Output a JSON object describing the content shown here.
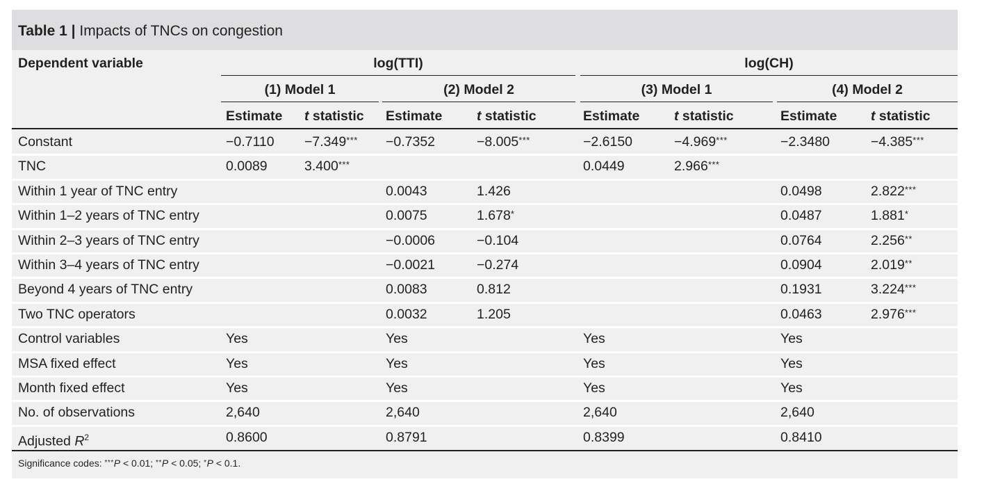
{
  "title": {
    "bold": "Table 1 |",
    "text": "Impacts of TNCs on congestion"
  },
  "header": {
    "dependent_variable": "Dependent variable",
    "groups": [
      "log(TTI)",
      "log(CH)"
    ],
    "models": [
      "(1) Model 1",
      "(2) Model 2",
      "(3) Model 1",
      "(4) Model 2"
    ],
    "subcolumns": [
      "Estimate",
      "t statistic",
      "Estimate",
      "t statistic",
      "Estimate",
      "t statistic",
      "Estimate",
      "t statistic"
    ]
  },
  "rows": [
    {
      "label": "Constant",
      "cells": [
        "−0.7110",
        "−7.349",
        "−0.7352",
        "−8.005",
        "−2.6150",
        "−4.969",
        "−2.3480",
        "−4.385"
      ],
      "stars": [
        "",
        "***",
        "",
        "***",
        "",
        "***",
        "",
        "***"
      ]
    },
    {
      "label": "TNC",
      "cells": [
        "0.0089",
        "3.400",
        "",
        "",
        "0.0449",
        "2.966",
        "",
        ""
      ],
      "stars": [
        "",
        "***",
        "",
        "",
        "",
        "***",
        "",
        ""
      ]
    },
    {
      "label": "Within 1 year of TNC entry",
      "cells": [
        "",
        "",
        "0.0043",
        "1.426",
        "",
        "",
        "0.0498",
        "2.822"
      ],
      "stars": [
        "",
        "",
        "",
        "",
        "",
        "",
        "",
        "***"
      ]
    },
    {
      "label": "Within 1–2 years of TNC entry",
      "cells": [
        "",
        "",
        "0.0075",
        "1.678",
        "",
        "",
        "0.0487",
        "1.881"
      ],
      "stars": [
        "",
        "",
        "",
        "*",
        "",
        "",
        "",
        "*"
      ]
    },
    {
      "label": "Within 2–3 years of TNC entry",
      "cells": [
        "",
        "",
        "−0.0006",
        "−0.104",
        "",
        "",
        "0.0764",
        "2.256"
      ],
      "stars": [
        "",
        "",
        "",
        "",
        "",
        "",
        "",
        "**"
      ]
    },
    {
      "label": "Within 3–4 years of TNC entry",
      "cells": [
        "",
        "",
        "−0.0021",
        "−0.274",
        "",
        "",
        "0.0904",
        "2.019"
      ],
      "stars": [
        "",
        "",
        "",
        "",
        "",
        "",
        "",
        "**"
      ]
    },
    {
      "label": "Beyond 4 years of TNC entry",
      "cells": [
        "",
        "",
        "0.0083",
        "0.812",
        "",
        "",
        "0.1931",
        "3.224"
      ],
      "stars": [
        "",
        "",
        "",
        "",
        "",
        "",
        "",
        "***"
      ]
    },
    {
      "label": "Two TNC operators",
      "cells": [
        "",
        "",
        "0.0032",
        "1.205",
        "",
        "",
        "0.0463",
        "2.976"
      ],
      "stars": [
        "",
        "",
        "",
        "",
        "",
        "",
        "",
        "***"
      ]
    },
    {
      "label": "Control variables",
      "cells": [
        "Yes",
        "",
        "Yes",
        "",
        "Yes",
        "",
        "Yes",
        ""
      ],
      "stars": [
        "",
        "",
        "",
        "",
        "",
        "",
        "",
        ""
      ]
    },
    {
      "label": "MSA fixed effect",
      "cells": [
        "Yes",
        "",
        "Yes",
        "",
        "Yes",
        "",
        "Yes",
        ""
      ],
      "stars": [
        "",
        "",
        "",
        "",
        "",
        "",
        "",
        ""
      ]
    },
    {
      "label": "Month fixed effect",
      "cells": [
        "Yes",
        "",
        "Yes",
        "",
        "Yes",
        "",
        "Yes",
        ""
      ],
      "stars": [
        "",
        "",
        "",
        "",
        "",
        "",
        "",
        ""
      ]
    },
    {
      "label": "No. of observations",
      "cells": [
        "2,640",
        "",
        "2,640",
        "",
        "2,640",
        "",
        "2,640",
        ""
      ],
      "stars": [
        "",
        "",
        "",
        "",
        "",
        "",
        "",
        ""
      ]
    },
    {
      "label": "Adjusted R²",
      "cells": [
        "0.8600",
        "",
        "0.8791",
        "",
        "0.8399",
        "",
        "0.8410",
        ""
      ],
      "stars": [
        "",
        "",
        "",
        "",
        "",
        "",
        "",
        ""
      ]
    }
  ],
  "footnote": "Significance codes: ***P < 0.01; **P < 0.05; *P < 0.1."
}
